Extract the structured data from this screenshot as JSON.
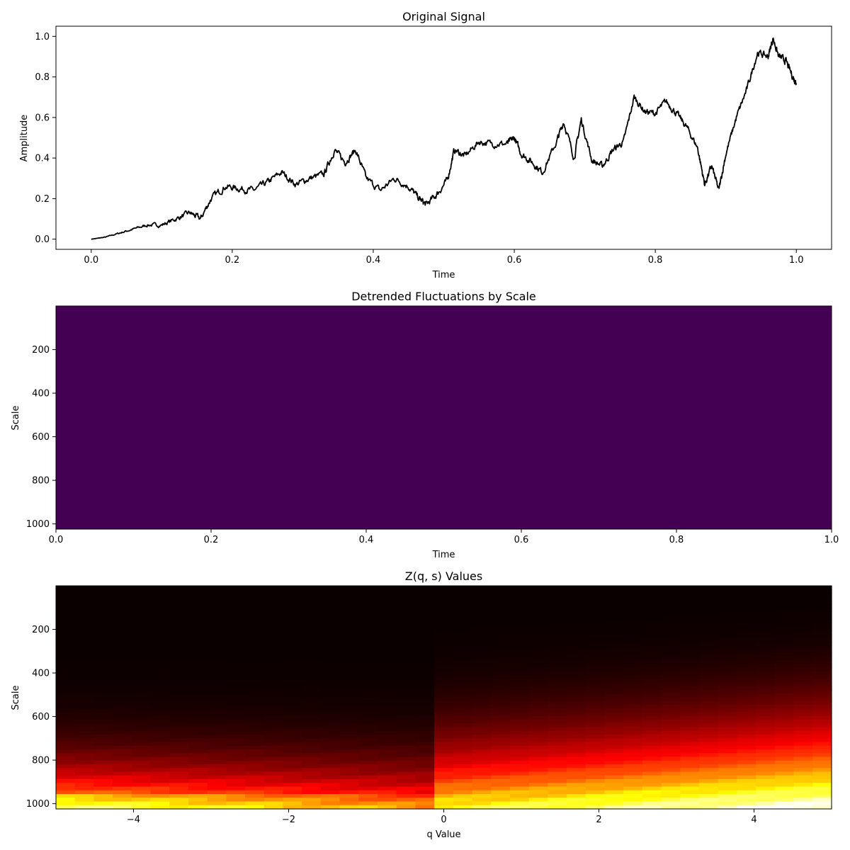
{
  "chart_data": [
    {
      "type": "line",
      "title": "Original Signal",
      "xlabel": "Time",
      "ylabel": "Amplitude",
      "xlim": [
        -0.05,
        1.05
      ],
      "ylim": [
        -0.05,
        1.05
      ],
      "xticks": [
        0.0,
        0.2,
        0.4,
        0.6,
        0.8,
        1.0
      ],
      "xtick_labels": [
        "0.0",
        "0.2",
        "0.4",
        "0.6",
        "0.8",
        "1.0"
      ],
      "yticks": [
        0.0,
        0.2,
        0.4,
        0.6,
        0.8,
        1.0
      ],
      "ytick_labels": [
        "0.0",
        "0.2",
        "0.4",
        "0.6",
        "0.8",
        "1.0"
      ],
      "line_color": "#000000",
      "grid": false,
      "x": [
        0.0,
        0.02,
        0.04,
        0.06,
        0.08,
        0.1,
        0.12,
        0.14,
        0.155,
        0.17,
        0.19,
        0.21,
        0.23,
        0.25,
        0.27,
        0.29,
        0.31,
        0.33,
        0.345,
        0.36,
        0.375,
        0.39,
        0.41,
        0.43,
        0.45,
        0.465,
        0.475,
        0.49,
        0.505,
        0.515,
        0.53,
        0.55,
        0.57,
        0.59,
        0.6,
        0.61,
        0.625,
        0.64,
        0.66,
        0.67,
        0.685,
        0.695,
        0.71,
        0.725,
        0.74,
        0.755,
        0.77,
        0.785,
        0.8,
        0.815,
        0.83,
        0.845,
        0.86,
        0.87,
        0.88,
        0.89,
        0.9,
        0.915,
        0.93,
        0.945,
        0.96,
        0.967,
        0.975,
        0.985,
        0.995,
        1.0
      ],
      "y": [
        0.0,
        0.01,
        0.03,
        0.05,
        0.07,
        0.07,
        0.1,
        0.13,
        0.1,
        0.2,
        0.26,
        0.25,
        0.24,
        0.28,
        0.33,
        0.27,
        0.3,
        0.32,
        0.44,
        0.38,
        0.44,
        0.3,
        0.24,
        0.3,
        0.26,
        0.2,
        0.17,
        0.22,
        0.29,
        0.44,
        0.41,
        0.48,
        0.47,
        0.47,
        0.5,
        0.42,
        0.38,
        0.33,
        0.48,
        0.58,
        0.4,
        0.59,
        0.39,
        0.36,
        0.44,
        0.48,
        0.7,
        0.63,
        0.62,
        0.68,
        0.62,
        0.55,
        0.45,
        0.27,
        0.36,
        0.24,
        0.42,
        0.6,
        0.74,
        0.92,
        0.9,
        0.99,
        0.9,
        0.88,
        0.8,
        0.77
      ],
      "noise_amp": 0.025,
      "noise_seed": 7
    },
    {
      "type": "heatmap",
      "title": "Detrended Fluctuations by Scale",
      "xlabel": "Time",
      "ylabel": "Scale",
      "xlim": [
        0.0,
        1.0
      ],
      "ylim": [
        1024,
        0
      ],
      "xticks": [
        0.0,
        0.2,
        0.4,
        0.6,
        0.8,
        1.0
      ],
      "xtick_labels": [
        "0.0",
        "0.2",
        "0.4",
        "0.6",
        "0.8",
        "1.0"
      ],
      "yticks": [
        200,
        400,
        600,
        800,
        1000
      ],
      "ytick_labels": [
        "200",
        "400",
        "600",
        "800",
        "1000"
      ],
      "colormap": "viridis",
      "fill_color": "#440154"
    },
    {
      "type": "heatmap",
      "title": "Z(q, s) Values",
      "xlabel": "q Value",
      "ylabel": "Scale",
      "xlim": [
        -5,
        5
      ],
      "ylim": [
        1024,
        0
      ],
      "xticks": [
        -4,
        -2,
        0,
        2,
        4
      ],
      "xtick_labels": [
        "−4",
        "−2",
        "0",
        "2",
        "4"
      ],
      "yticks": [
        200,
        400,
        600,
        800,
        1000
      ],
      "ytick_labels": [
        "200",
        "400",
        "600",
        "800",
        "1000"
      ],
      "colormap": "hot",
      "q_values": [
        -5,
        5
      ],
      "scale_range": [
        0,
        1024
      ],
      "grid_cols": 41,
      "grid_rows": 60
    }
  ]
}
